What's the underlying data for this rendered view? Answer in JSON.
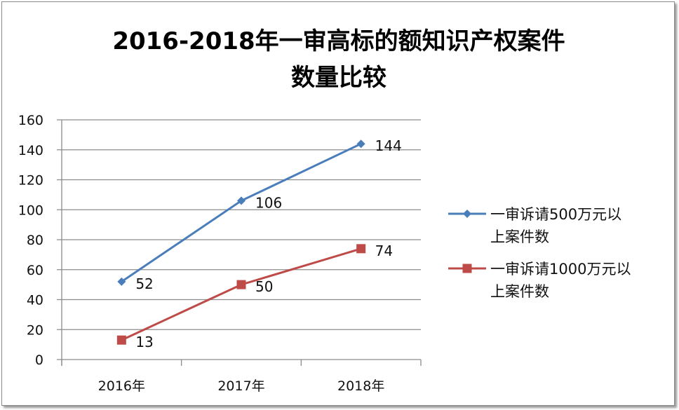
{
  "chart_data": {
    "type": "line",
    "title": [
      "2016-2018年一审高标的额知识产权案件",
      "数量比较"
    ],
    "categories": [
      "2016年",
      "2017年",
      "2018年"
    ],
    "series": [
      {
        "name": "一审诉请500万元以上案件数",
        "legend_lines": [
          "一审诉请500万元以",
          "上案件数"
        ],
        "values": [
          52,
          106,
          144
        ],
        "color": "#4a7ebb",
        "marker": "diamond"
      },
      {
        "name": "一审诉请1000万元以上案件数",
        "legend_lines": [
          "一审诉请1000万元以",
          "上案件数"
        ],
        "values": [
          13,
          50,
          74
        ],
        "color": "#be4b48",
        "marker": "square"
      }
    ],
    "ylim": [
      0,
      160
    ],
    "yticks": [
      0,
      20,
      40,
      60,
      80,
      100,
      120,
      140,
      160
    ],
    "grid": true,
    "legend": "right",
    "xlabel": "",
    "ylabel": ""
  }
}
